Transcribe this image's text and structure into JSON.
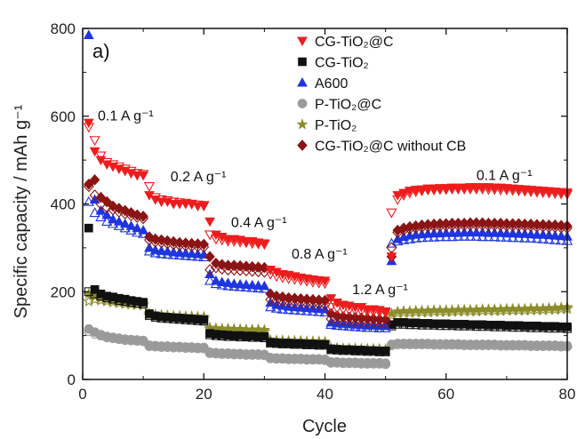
{
  "chart_data": {
    "type": "scatter",
    "panel_label": "a)",
    "xlabel": "Cycle",
    "ylabel": "Specific capacity / mAh g⁻¹",
    "xlim": [
      0,
      80
    ],
    "ylim": [
      0,
      800
    ],
    "x_ticks": [
      0,
      20,
      40,
      60,
      80
    ],
    "y_ticks": [
      0,
      200,
      400,
      600,
      800
    ],
    "legend_position": "top-right",
    "annotations": [
      {
        "text": "0.1 A g⁻¹",
        "x": 2.5,
        "y": 590
      },
      {
        "text": "0.2 A g⁻¹",
        "x": 14.5,
        "y": 452
      },
      {
        "text": "0.4 A g⁻¹",
        "x": 24.5,
        "y": 347
      },
      {
        "text": "0.8 A g⁻¹",
        "x": 34.5,
        "y": 275
      },
      {
        "text": "1.2 A g⁻¹",
        "x": 44.5,
        "y": 194
      },
      {
        "text": "0.1 A g⁻¹",
        "x": 65,
        "y": 455
      }
    ],
    "series": [
      {
        "name": "CG-TiO₂@C",
        "marker": "triangle-down",
        "color": "#ee1c1c",
        "charge": [
          585,
          520,
          500,
          490,
          485,
          480,
          475,
          470,
          465,
          465,
          420,
          410,
          405,
          405,
          400,
          400,
          400,
          400,
          395,
          395,
          360,
          330,
          325,
          320,
          320,
          318,
          315,
          315,
          312,
          310,
          250,
          245,
          240,
          238,
          235,
          232,
          230,
          228,
          226,
          225,
          185,
          175,
          170,
          168,
          165,
          165,
          160,
          160,
          158,
          155,
          280,
          420,
          425,
          430,
          432,
          433,
          435,
          435,
          436,
          436,
          437,
          437,
          437,
          438,
          438,
          438,
          438,
          437,
          437,
          436,
          435,
          434,
          433,
          432,
          431,
          430,
          429,
          428,
          427,
          426
        ],
        "discharge": [
          575,
          545,
          510,
          495,
          490,
          485,
          480,
          475,
          470,
          468,
          440,
          415,
          410,
          408,
          405,
          403,
          402,
          400,
          398,
          397,
          330,
          320,
          318,
          315,
          315,
          313,
          312,
          310,
          309,
          308,
          240,
          235,
          232,
          230,
          228,
          226,
          224,
          222,
          220,
          219,
          165,
          162,
          160,
          158,
          157,
          156,
          155,
          154,
          153,
          152,
          380,
          410,
          420,
          425,
          428,
          430,
          432,
          432,
          433,
          433,
          434,
          434,
          434,
          434,
          434,
          434,
          433,
          433,
          432,
          432,
          431,
          430,
          429,
          428,
          427,
          426,
          425,
          424,
          423,
          422
        ]
      },
      {
        "name": "CG-TiO₂",
        "marker": "square",
        "color": "#111111",
        "charge": [
          345,
          205,
          195,
          190,
          188,
          185,
          183,
          180,
          178,
          176,
          150,
          145,
          143,
          142,
          141,
          140,
          139,
          138,
          137,
          136,
          105,
          103,
          102,
          101,
          100,
          100,
          99,
          99,
          98,
          98,
          85,
          84,
          83,
          83,
          82,
          82,
          81,
          81,
          80,
          80,
          70,
          69,
          68,
          68,
          67,
          67,
          66,
          66,
          65,
          65,
          125,
          130,
          130,
          129,
          129,
          128,
          128,
          127,
          127,
          127,
          126,
          126,
          126,
          125,
          125,
          125,
          124,
          124,
          124,
          123,
          123,
          123,
          122,
          122,
          122,
          121,
          121,
          121,
          120,
          120
        ],
        "discharge": [
          200,
          195,
          190,
          186,
          183,
          180,
          178,
          176,
          174,
          172,
          146,
          142,
          140,
          139,
          138,
          137,
          136,
          135,
          134,
          133,
          102,
          100,
          99,
          98,
          98,
          97,
          97,
          96,
          96,
          95,
          83,
          82,
          81,
          81,
          80,
          80,
          79,
          79,
          78,
          78,
          68,
          67,
          66,
          66,
          65,
          65,
          64,
          64,
          63,
          63,
          122,
          126,
          126,
          125,
          125,
          124,
          124,
          124,
          123,
          123,
          123,
          122,
          122,
          122,
          121,
          121,
          121,
          120,
          120,
          120,
          119,
          119,
          119,
          118,
          118,
          118,
          117,
          117,
          117,
          116
        ]
      },
      {
        "name": "A600",
        "marker": "triangle-up",
        "color": "#1f35e0",
        "charge": [
          785,
          410,
          385,
          375,
          365,
          360,
          355,
          350,
          345,
          340,
          300,
          295,
          293,
          292,
          290,
          289,
          288,
          287,
          286,
          285,
          240,
          225,
          222,
          220,
          218,
          217,
          216,
          215,
          214,
          213,
          175,
          170,
          168,
          166,
          165,
          164,
          163,
          162,
          161,
          160,
          130,
          128,
          127,
          126,
          125,
          124,
          123,
          123,
          122,
          122,
          270,
          320,
          325,
          328,
          330,
          331,
          332,
          333,
          333,
          334,
          334,
          334,
          335,
          335,
          335,
          335,
          334,
          334,
          334,
          333,
          333,
          332,
          332,
          331,
          330,
          330,
          329,
          328,
          327,
          326
        ],
        "discharge": [
          405,
          380,
          370,
          360,
          355,
          350,
          345,
          340,
          335,
          332,
          292,
          288,
          286,
          285,
          284,
          283,
          282,
          281,
          280,
          279,
          225,
          218,
          215,
          213,
          212,
          211,
          210,
          209,
          208,
          207,
          165,
          162,
          160,
          159,
          158,
          157,
          156,
          155,
          154,
          153,
          125,
          123,
          122,
          121,
          120,
          119,
          118,
          118,
          117,
          117,
          310,
          315,
          318,
          320,
          322,
          323,
          324,
          324,
          325,
          325,
          325,
          326,
          326,
          326,
          326,
          325,
          325,
          325,
          324,
          324,
          323,
          323,
          322,
          322,
          321,
          320,
          319,
          318,
          317,
          316
        ]
      },
      {
        "name": "P-TiO₂@C",
        "marker": "circle",
        "color": "#9a9a9a",
        "charge": [
          115,
          108,
          102,
          98,
          96,
          94,
          92,
          91,
          90,
          89,
          78,
          77,
          76,
          76,
          75,
          75,
          74,
          74,
          73,
          73,
          62,
          61,
          60,
          60,
          59,
          59,
          58,
          58,
          58,
          57,
          50,
          49,
          49,
          48,
          48,
          48,
          47,
          47,
          47,
          46,
          40,
          40,
          39,
          39,
          39,
          38,
          38,
          38,
          38,
          37,
          80,
          82,
          82,
          82,
          82,
          82,
          82,
          81,
          81,
          81,
          81,
          81,
          80,
          80,
          80,
          80,
          80,
          80,
          79,
          79,
          79,
          79,
          79,
          78,
          78,
          78,
          78,
          78,
          77,
          77
        ],
        "discharge": [
          110,
          104,
          100,
          96,
          94,
          92,
          90,
          89,
          88,
          87,
          76,
          75,
          74,
          74,
          73,
          73,
          72,
          72,
          71,
          71,
          60,
          59,
          58,
          58,
          57,
          57,
          56,
          56,
          56,
          55,
          48,
          47,
          47,
          46,
          46,
          46,
          45,
          45,
          45,
          44,
          38,
          38,
          37,
          37,
          37,
          36,
          36,
          36,
          36,
          35,
          78,
          80,
          80,
          80,
          80,
          80,
          80,
          79,
          79,
          79,
          79,
          79,
          78,
          78,
          78,
          78,
          78,
          78,
          77,
          77,
          77,
          77,
          77,
          76,
          76,
          76,
          76,
          76,
          75,
          75
        ]
      },
      {
        "name": "P-TiO₂",
        "marker": "star",
        "color": "#8c8c2a",
        "charge": [
          195,
          190,
          185,
          182,
          180,
          178,
          176,
          175,
          174,
          173,
          150,
          148,
          147,
          146,
          145,
          145,
          144,
          144,
          143,
          143,
          118,
          117,
          116,
          116,
          115,
          115,
          114,
          114,
          114,
          113,
          90,
          89,
          89,
          88,
          88,
          88,
          87,
          87,
          87,
          86,
          72,
          72,
          71,
          71,
          71,
          70,
          70,
          70,
          70,
          69,
          150,
          155,
          156,
          156,
          157,
          157,
          157,
          158,
          158,
          158,
          158,
          159,
          159,
          159,
          159,
          160,
          160,
          160,
          160,
          161,
          161,
          161,
          161,
          162,
          162,
          162,
          163,
          163,
          164,
          165
        ],
        "discharge": [
          178,
          182,
          180,
          178,
          176,
          174,
          172,
          171,
          170,
          169,
          146,
          144,
          143,
          142,
          141,
          141,
          140,
          140,
          139,
          139,
          114,
          113,
          112,
          112,
          111,
          111,
          110,
          110,
          110,
          109,
          86,
          85,
          85,
          84,
          84,
          84,
          83,
          83,
          83,
          82,
          68,
          68,
          67,
          67,
          67,
          66,
          66,
          66,
          66,
          65,
          146,
          151,
          152,
          152,
          153,
          153,
          153,
          154,
          154,
          154,
          154,
          155,
          155,
          155,
          155,
          156,
          156,
          156,
          156,
          157,
          157,
          157,
          157,
          158,
          158,
          158,
          159,
          159,
          160,
          161
        ]
      },
      {
        "name": "CG-TiO₂@C without CB",
        "marker": "diamond",
        "color": "#8b1414",
        "charge": [
          445,
          455,
          415,
          405,
          395,
          390,
          385,
          380,
          375,
          372,
          325,
          320,
          318,
          316,
          314,
          312,
          311,
          310,
          309,
          308,
          280,
          265,
          262,
          260,
          260,
          259,
          258,
          257,
          256,
          255,
          195,
          190,
          188,
          186,
          185,
          184,
          183,
          182,
          181,
          180,
          150,
          145,
          143,
          142,
          141,
          140,
          139,
          138,
          137,
          136,
          280,
          340,
          345,
          348,
          350,
          352,
          353,
          354,
          355,
          355,
          356,
          356,
          356,
          357,
          357,
          357,
          356,
          356,
          356,
          355,
          355,
          355,
          354,
          354,
          353,
          353,
          352,
          352,
          351,
          350
        ],
        "discharge": [
          440,
          420,
          400,
          392,
          387,
          382,
          378,
          374,
          370,
          367,
          318,
          314,
          312,
          310,
          308,
          306,
          305,
          304,
          303,
          302,
          250,
          255,
          252,
          250,
          250,
          249,
          248,
          247,
          246,
          245,
          182,
          180,
          178,
          177,
          176,
          175,
          174,
          173,
          172,
          171,
          138,
          136,
          135,
          134,
          133,
          132,
          131,
          130,
          129,
          128,
          300,
          335,
          340,
          343,
          345,
          347,
          348,
          349,
          350,
          350,
          351,
          351,
          351,
          352,
          352,
          352,
          351,
          351,
          351,
          350,
          350,
          350,
          349,
          349,
          348,
          348,
          347,
          347,
          346,
          345
        ]
      }
    ]
  }
}
